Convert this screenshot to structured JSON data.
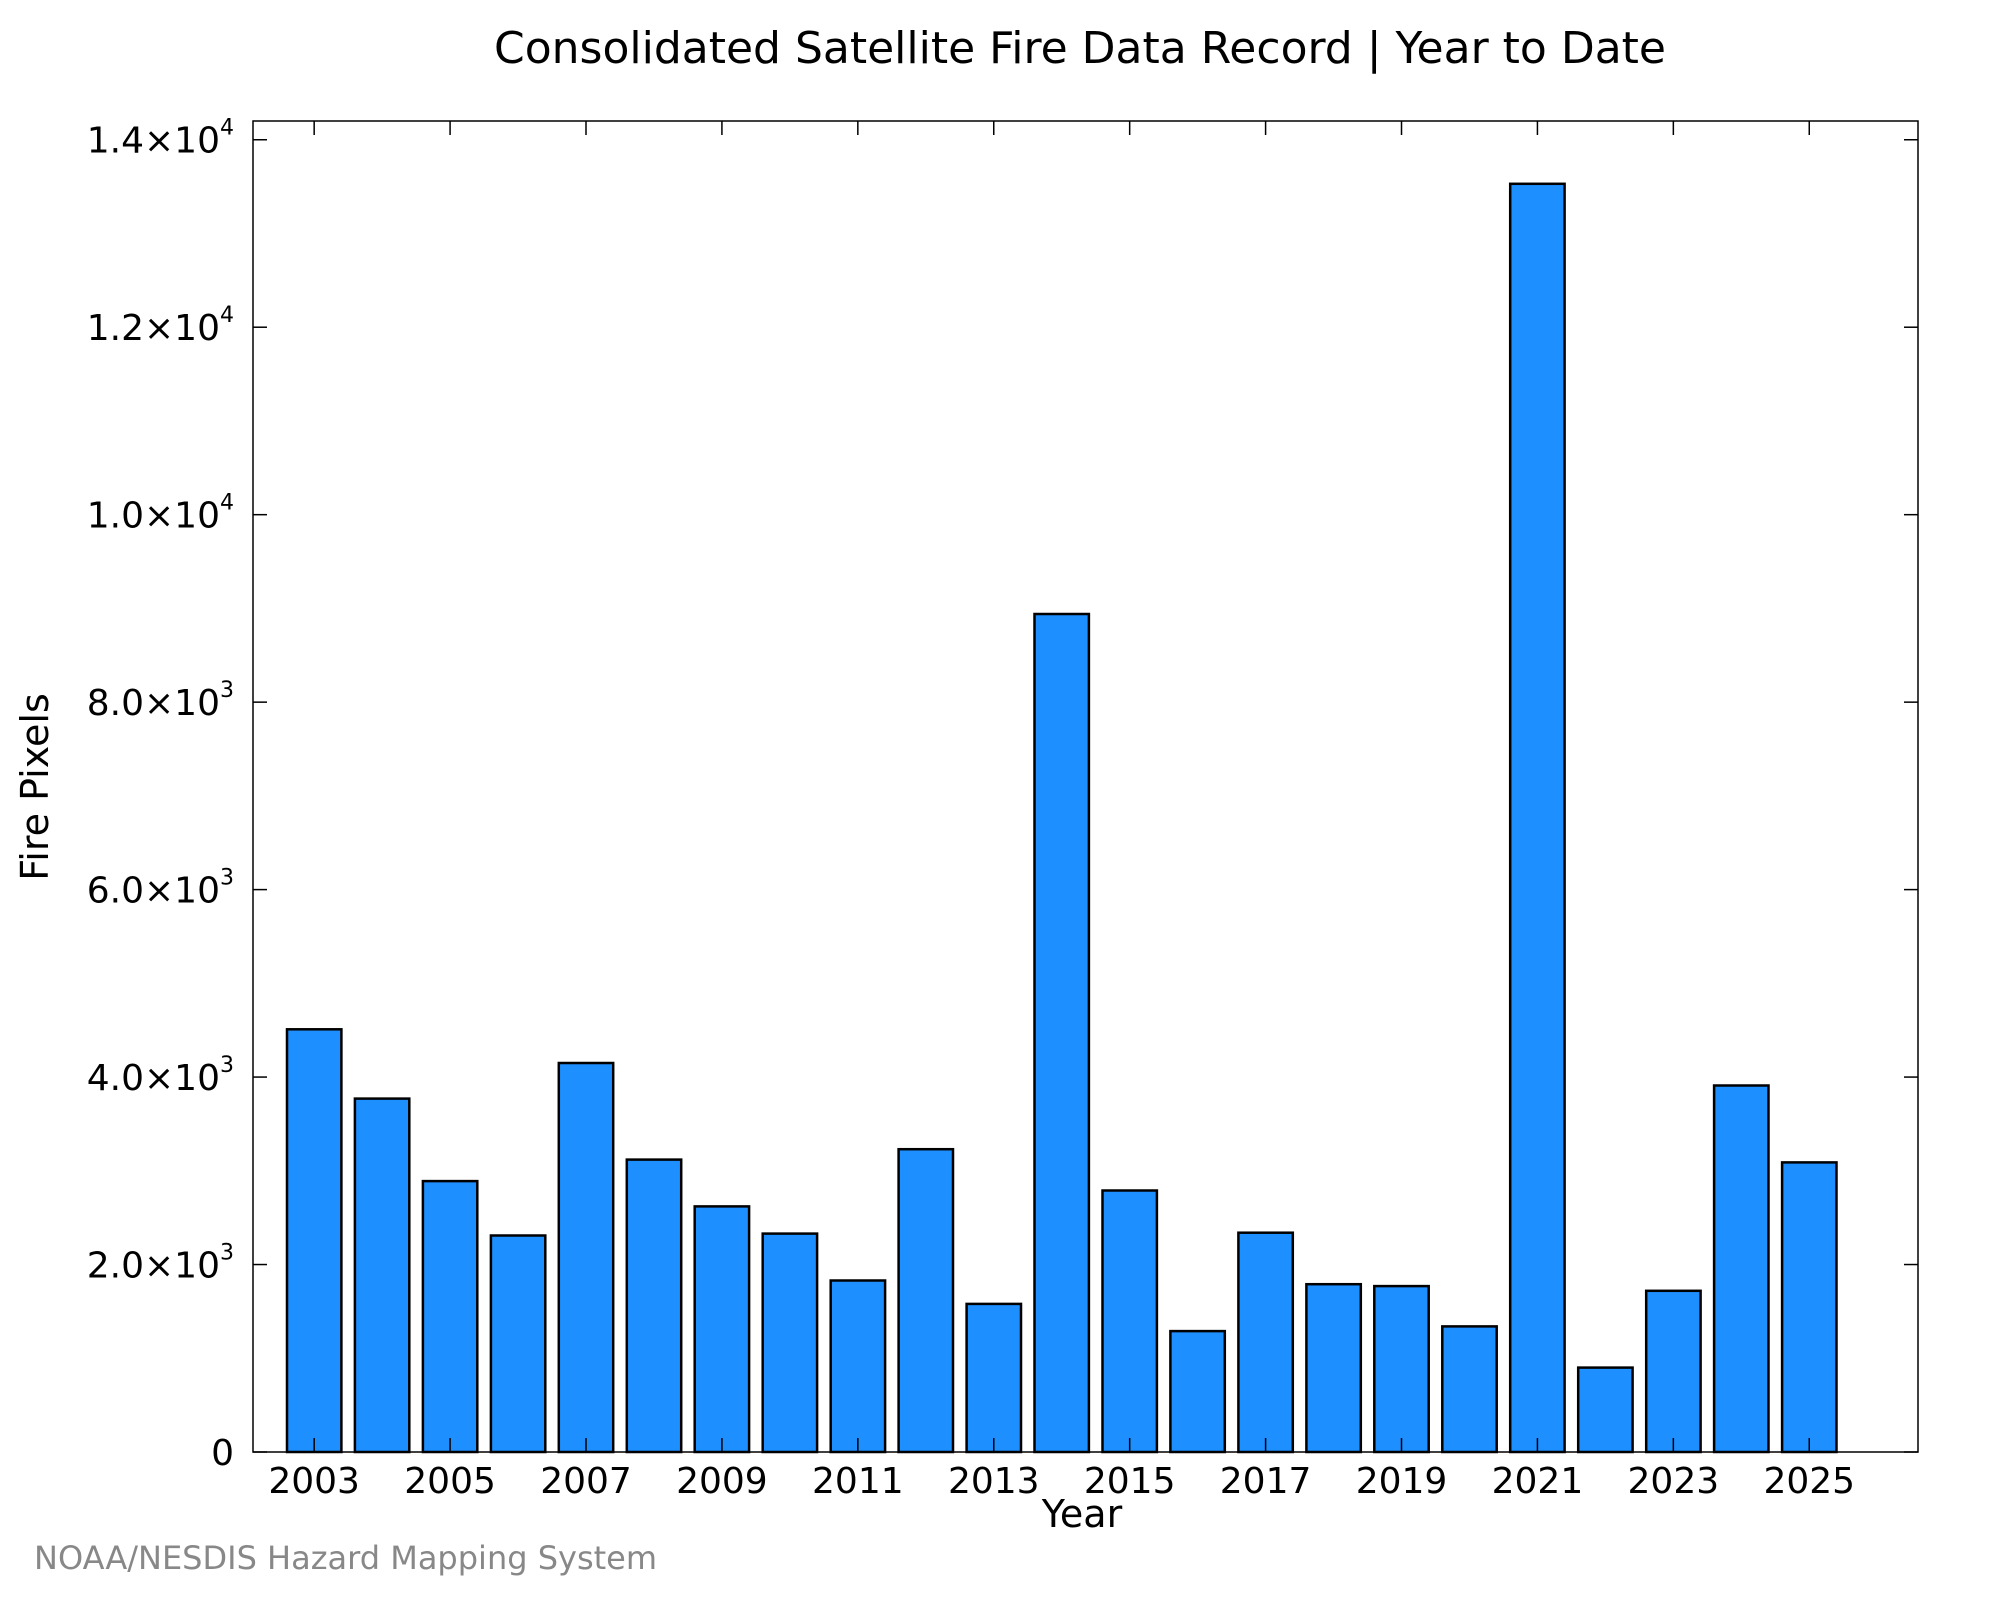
{
  "chart_data": {
    "type": "bar",
    "title": "Consolidated Satellite Fire Data Record | Year to Date",
    "xlabel": "Year",
    "ylabel": "Fire Pixels",
    "categories": [
      "2003",
      "2004",
      "2005",
      "2006",
      "2007",
      "2008",
      "2009",
      "2010",
      "2011",
      "2012",
      "2013",
      "2014",
      "2015",
      "2016",
      "2017",
      "2018",
      "2019",
      "2020",
      "2021",
      "2022",
      "2023",
      "2024",
      "2025"
    ],
    "values": [
      4510,
      3770,
      2890,
      2310,
      4150,
      3120,
      2620,
      2330,
      1830,
      3230,
      1580,
      8940,
      2790,
      1290,
      2340,
      1790,
      1770,
      1340,
      13530,
      900,
      1720,
      3910,
      3090
    ],
    "ylim": [
      0,
      14200
    ],
    "xtick_labels": [
      "2003",
      "2005",
      "2007",
      "2009",
      "2011",
      "2013",
      "2015",
      "2017",
      "2019",
      "2021",
      "2023",
      "2025"
    ],
    "ytick_labels": [
      {
        "value": 0,
        "mantissa": "0",
        "exp": ""
      },
      {
        "value": 2000,
        "mantissa": "2.0×10",
        "exp": "3"
      },
      {
        "value": 4000,
        "mantissa": "4.0×10",
        "exp": "3"
      },
      {
        "value": 6000,
        "mantissa": "6.0×10",
        "exp": "3"
      },
      {
        "value": 8000,
        "mantissa": "8.0×10",
        "exp": "3"
      },
      {
        "value": 10000,
        "mantissa": "1.0×10",
        "exp": "4"
      },
      {
        "value": 12000,
        "mantissa": "1.2×10",
        "exp": "4"
      },
      {
        "value": 14000,
        "mantissa": "1.4×10",
        "exp": "4"
      }
    ],
    "bar_color": "#1E8FFF",
    "grid": false,
    "legend": "none"
  },
  "credit": "NOAA/NESDIS Hazard Mapping System"
}
